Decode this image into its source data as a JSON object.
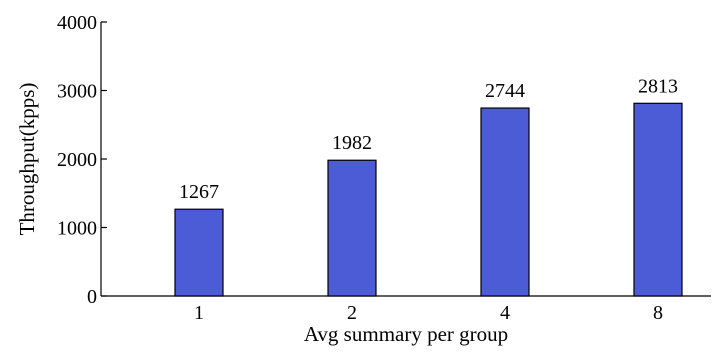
{
  "chart_data": {
    "type": "bar",
    "categories": [
      "1",
      "2",
      "4",
      "8"
    ],
    "values": [
      1267,
      1982,
      2744,
      2813
    ],
    "data_labels": [
      "1267",
      "1982",
      "2744",
      "2813"
    ],
    "xlabel": "Avg summary per group",
    "ylabel": "Throughput(kpps)",
    "ylim": [
      0,
      4000
    ],
    "yticks": [
      0,
      1000,
      2000,
      3000,
      4000
    ],
    "ytick_labels": [
      "0",
      "1000",
      "2000",
      "3000",
      "4000"
    ],
    "bar_color": "#4c5cd6",
    "grid": false,
    "legend": "none"
  }
}
